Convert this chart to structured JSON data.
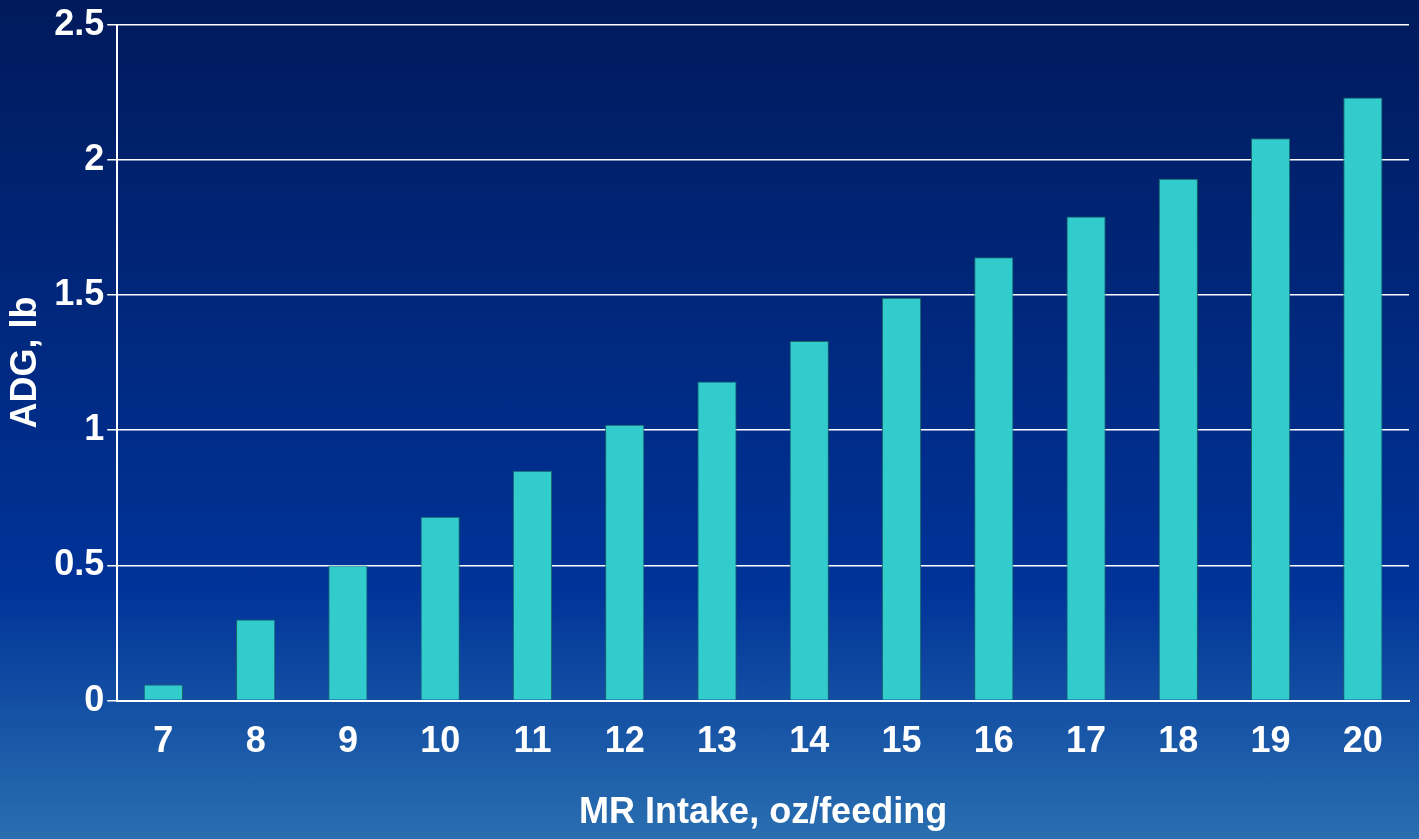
{
  "chart_data": {
    "type": "bar",
    "xlabel": "MR Intake, oz/feeding",
    "ylabel": "ADG, lb",
    "categories": [
      "7",
      "8",
      "9",
      "10",
      "11",
      "12",
      "13",
      "14",
      "15",
      "16",
      "17",
      "18",
      "19",
      "20"
    ],
    "values": [
      0.06,
      0.3,
      0.5,
      0.68,
      0.85,
      1.02,
      1.18,
      1.33,
      1.49,
      1.64,
      1.79,
      1.93,
      2.08,
      2.23
    ],
    "color": "#33cccc",
    "ylim": [
      0,
      2.5
    ],
    "yticks": [
      0,
      0.5,
      1,
      1.5,
      2,
      2.5
    ],
    "grid": "y"
  }
}
